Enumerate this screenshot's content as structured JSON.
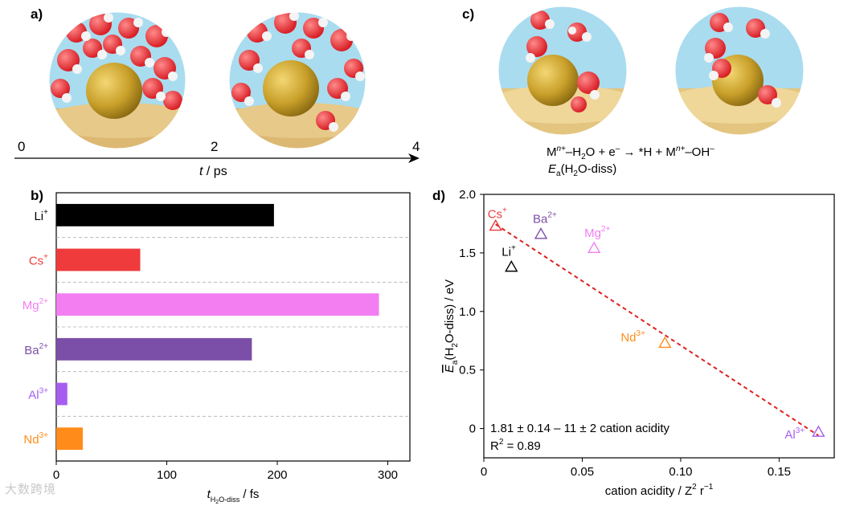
{
  "panel_labels": {
    "a": "a)",
    "b": "b)",
    "c": "c)",
    "d": "d)"
  },
  "panel_a": {
    "timeline_ticks": [
      "0",
      "2",
      "4"
    ],
    "axis_label_italic": "t",
    "axis_label_unit": " / ps"
  },
  "panel_c": {
    "equation": {
      "M": "M",
      "n": "n+",
      "rest1": "–H",
      "sub2": "2",
      "rest2": "O + e",
      "sup_minus": "–",
      "rest3": " → *H + M",
      "n2": "n+",
      "rest4": "–OH",
      "sup_minus2": "–"
    },
    "ea": {
      "E": "E",
      "a": "a",
      "rest": "(H",
      "two": "2",
      "tail": "O-diss)"
    }
  },
  "colors": {
    "Li": "#000000",
    "Cs": "#ef3b3b",
    "Mg": "#f27ef2",
    "Ba": "#7b4fa8",
    "Al": "#a65df0",
    "Nd": "#ff8c1a",
    "fit": "#dd2222"
  },
  "chart_data": [
    {
      "type": "bar",
      "orientation": "horizontal",
      "categories": [
        "Li",
        "Cs",
        "Mg",
        "Ba",
        "Al",
        "Nd"
      ],
      "category_labels": [
        {
          "base": "Li",
          "sup": "+"
        },
        {
          "base": "Cs",
          "sup": "+"
        },
        {
          "base": "Mg",
          "sup": "2+"
        },
        {
          "base": "Ba",
          "sup": "2+"
        },
        {
          "base": "Al",
          "sup": "3+"
        },
        {
          "base": "Nd",
          "sup": "3+"
        }
      ],
      "values": [
        197,
        76,
        292,
        177,
        10,
        24
      ],
      "xlim": [
        0,
        320
      ],
      "xticks": [
        0,
        100,
        200,
        300
      ],
      "xlabel": {
        "t": "t",
        "sub": "H",
        "sub2": "2",
        "sub3": "O-diss",
        "unit": " / fs"
      }
    },
    {
      "type": "scatter",
      "points": [
        {
          "ion": "Cs",
          "sup": "+",
          "x": 0.006,
          "y": 1.73
        },
        {
          "ion": "Ba",
          "sup": "2+",
          "x": 0.029,
          "y": 1.66
        },
        {
          "ion": "Mg",
          "sup": "2+",
          "x": 0.056,
          "y": 1.54
        },
        {
          "ion": "Li",
          "sup": "+",
          "x": 0.014,
          "y": 1.38
        },
        {
          "ion": "Nd",
          "sup": "3+",
          "x": 0.092,
          "y": 0.73
        },
        {
          "ion": "Al",
          "sup": "3+",
          "x": 0.17,
          "y": -0.03
        }
      ],
      "fit": {
        "intercept": 1.81,
        "slope": -11,
        "x_range": [
          0.006,
          0.17
        ]
      },
      "xlim": [
        0,
        0.178
      ],
      "ylim": [
        -0.25,
        2.0
      ],
      "xticks": [
        "0",
        "0.05",
        "0.10",
        "0.15"
      ],
      "yticks": [
        "2.0",
        "1.5",
        "1.0",
        "0.5",
        "0"
      ],
      "xlabel": "cation acidity / Z",
      "xlabel_sup": "2",
      "xlabel_tail": " r",
      "xlabel_sup2": "−1",
      "ylabel": {
        "E": "E",
        "sub": "a",
        "rest": "(H",
        "sub2": "2",
        "tail": "O-diss) / eV"
      },
      "annotation1": "1.81 ± 0.14 – 11 ± 2 cation acidity",
      "annotation2_pre": "R",
      "annotation2_sup": "2",
      "annotation2_post": " = 0.89"
    }
  ],
  "watermark": "大数跨境"
}
